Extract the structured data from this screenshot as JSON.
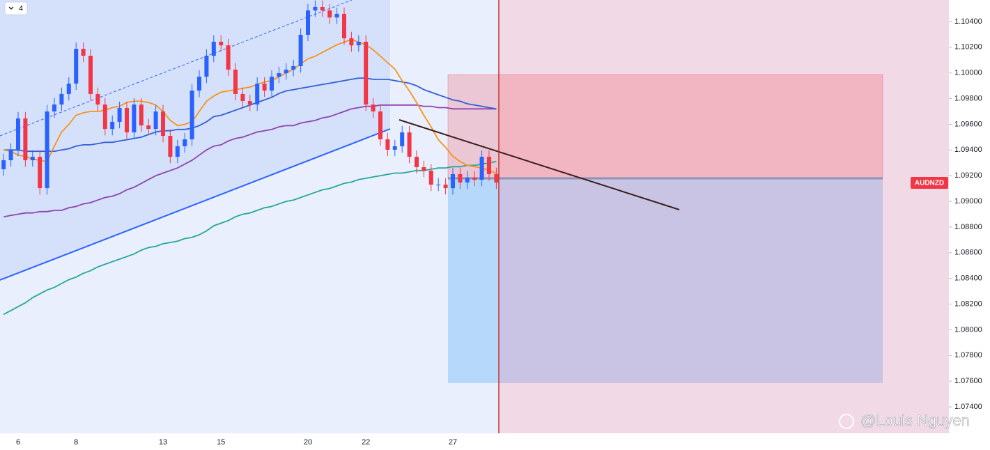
{
  "chart_data": {
    "type": "candlestick",
    "symbol": "AUDNZD",
    "badge": "4",
    "watermark": "@Louis Nguyen",
    "categories": [
      null,
      null,
      "6",
      null,
      null,
      null,
      null,
      null,
      null,
      null,
      "8",
      null,
      null,
      null,
      null,
      null,
      null,
      null,
      null,
      null,
      null,
      null,
      "13",
      null,
      null,
      null,
      null,
      null,
      null,
      null,
      "15",
      null,
      null,
      null,
      null,
      null,
      null,
      null,
      null,
      null,
      null,
      null,
      "20",
      null,
      null,
      null,
      null,
      null,
      null,
      null,
      "22",
      null,
      null,
      null,
      null,
      null,
      null,
      null,
      null,
      null,
      null,
      null,
      "27",
      null,
      null,
      null,
      null,
      null,
      null
    ],
    "open": [
      1.0925,
      1.0932,
      1.09402,
      1.09646,
      1.0932,
      1.09347,
      1.09103,
      1.097,
      1.09754,
      1.09836,
      1.09917,
      1.10188,
      1.10134,
      1.09836,
      1.09754,
      1.09564,
      1.09619,
      1.09727,
      1.09537,
      1.09754,
      1.09591,
      1.09564,
      1.097,
      1.0951,
      1.09347,
      1.09429,
      1.09483,
      1.09863,
      1.09971,
      1.10134,
      1.10243,
      1.10215,
      1.10026,
      1.09836,
      1.09781,
      1.09754,
      1.09917,
      1.09863,
      1.09971,
      1.09998,
      1.10026,
      1.10053,
      1.10297,
      1.10487,
      1.10514,
      1.10487,
      1.10432,
      1.1046,
      1.1027,
      1.10215,
      1.10243,
      1.09754,
      1.097,
      1.09483,
      1.09402,
      1.09429,
      1.09537,
      1.09347,
      1.09266,
      1.09239,
      1.0913,
      1.0913,
      1.09103,
      1.09212,
      1.09147,
      1.09185,
      1.09168,
      1.09347,
      1.09212
    ],
    "high": [
      1.0937,
      1.09452,
      1.09696,
      1.09696,
      1.09397,
      1.09397,
      1.0975,
      1.09804,
      1.09886,
      1.09967,
      1.10238,
      1.10238,
      1.10184,
      1.09886,
      1.09804,
      1.09669,
      1.09777,
      1.09777,
      1.09804,
      1.09804,
      1.09641,
      1.0975,
      1.0975,
      1.0956,
      1.09479,
      1.09533,
      1.09913,
      1.10021,
      1.10184,
      1.10293,
      1.10293,
      1.10265,
      1.10076,
      1.09886,
      1.09831,
      1.09967,
      1.09967,
      1.10021,
      1.10048,
      1.10076,
      1.10103,
      1.10347,
      1.10537,
      1.10564,
      1.10564,
      1.10537,
      1.1051,
      1.1051,
      1.1032,
      1.10293,
      1.10293,
      1.09804,
      1.0975,
      1.09533,
      1.09479,
      1.09587,
      1.09587,
      1.09397,
      1.09316,
      1.09289,
      1.0918,
      1.0918,
      1.09262,
      1.09262,
      1.09235,
      1.09235,
      1.09397,
      1.09397,
      1.09262
    ],
    "low": [
      1.092,
      1.0927,
      1.09352,
      1.0927,
      1.0927,
      1.09053,
      1.09053,
      1.0965,
      1.09704,
      1.09786,
      1.09867,
      1.10084,
      1.09786,
      1.09704,
      1.09514,
      1.09514,
      1.09569,
      1.09487,
      1.09487,
      1.09541,
      1.09514,
      1.09514,
      1.0946,
      1.09297,
      1.09297,
      1.09379,
      1.09433,
      1.09813,
      1.09921,
      1.10084,
      1.10165,
      1.09976,
      1.09786,
      1.09731,
      1.09704,
      1.09704,
      1.09813,
      1.09813,
      1.09921,
      1.09948,
      1.09976,
      1.10003,
      1.10247,
      1.10437,
      1.10437,
      1.10382,
      1.10382,
      1.1022,
      1.10165,
      1.10165,
      1.09704,
      1.0965,
      1.09433,
      1.09352,
      1.09352,
      1.09379,
      1.09297,
      1.09216,
      1.09189,
      1.0908,
      1.0908,
      1.09053,
      1.09053,
      1.09097,
      1.09097,
      1.09118,
      1.09118,
      1.09162,
      1.09097
    ],
    "close": [
      1.0932,
      1.09402,
      1.09646,
      1.0932,
      1.09347,
      1.09103,
      1.097,
      1.09754,
      1.09836,
      1.09917,
      1.10188,
      1.10134,
      1.09836,
      1.09754,
      1.09564,
      1.09619,
      1.09727,
      1.09537,
      1.09754,
      1.09591,
      1.09564,
      1.097,
      1.0951,
      1.09347,
      1.09429,
      1.09483,
      1.09863,
      1.09971,
      1.10134,
      1.10243,
      1.10215,
      1.10026,
      1.09836,
      1.09781,
      1.09754,
      1.09917,
      1.09863,
      1.09971,
      1.09998,
      1.10026,
      1.10053,
      1.10297,
      1.10487,
      1.10514,
      1.10487,
      1.10432,
      1.1046,
      1.1027,
      1.10215,
      1.10243,
      1.09754,
      1.097,
      1.09483,
      1.09402,
      1.09429,
      1.09537,
      1.09347,
      1.09266,
      1.09239,
      1.0913,
      1.0913,
      1.09103,
      1.09212,
      1.09147,
      1.09185,
      1.09168,
      1.09347,
      1.09212,
      1.09147
    ],
    "up_color": "#2962ff",
    "down_color": "#f23645",
    "overlays": [
      {
        "color": "#26a69a",
        "values": [
          1.0812,
          1.0815,
          1.0818,
          1.0821,
          1.0825,
          1.0828,
          1.0831,
          1.0833,
          1.0836,
          1.0839,
          1.0841,
          1.0844,
          1.0846,
          1.0849,
          1.0851,
          1.0853,
          1.0855,
          1.0857,
          1.0859,
          1.0862,
          1.0864,
          1.0865,
          1.0867,
          1.0868,
          1.0869,
          1.0871,
          1.0872,
          1.0874,
          1.0877,
          1.0881,
          1.0883,
          1.0885,
          1.0888,
          1.089,
          1.0891,
          1.0893,
          1.0895,
          1.0896,
          1.0898,
          1.09,
          1.0901,
          1.0903,
          1.0905,
          1.0907,
          1.0909,
          1.091,
          1.0912,
          1.0914,
          1.0915,
          1.0917,
          1.0918,
          1.0919,
          1.092,
          1.0921,
          1.0922,
          1.0922,
          1.0923,
          1.0924,
          1.0924,
          1.0925,
          1.0926,
          1.0926,
          1.0927,
          1.0927,
          1.0928,
          1.0928,
          1.0929,
          1.093,
          1.0931
        ]
      },
      {
        "color": "#8e44ad",
        "values": [
          1.0888,
          1.0889,
          1.089,
          1.0891,
          1.0891,
          1.0892,
          1.0892,
          1.0893,
          1.0893,
          1.0895,
          1.0896,
          1.0898,
          1.0899,
          1.0901,
          1.0903,
          1.0904,
          1.0906,
          1.0909,
          1.0911,
          1.0914,
          1.0917,
          1.092,
          1.0922,
          1.0924,
          1.0926,
          1.0929,
          1.0932,
          1.0936,
          1.094,
          1.0943,
          1.0944,
          1.0947,
          1.0949,
          1.095,
          1.0952,
          1.0954,
          1.0955,
          1.0956,
          1.0958,
          1.0959,
          1.0959,
          1.0961,
          1.0962,
          1.0963,
          1.0965,
          1.0966,
          1.0968,
          1.097,
          1.0972,
          1.0973,
          1.0974,
          1.0974,
          1.0975,
          1.0975,
          1.0975,
          1.0975,
          1.0975,
          1.0975,
          1.0974,
          1.0974,
          1.0973,
          1.0973,
          1.0972,
          1.0972,
          1.0972,
          1.0972,
          1.0972,
          1.0972,
          1.0972
        ]
      },
      {
        "color": "#2f5fd8",
        "values": [
          1.094,
          1.094,
          1.094,
          1.0939,
          1.0939,
          1.0939,
          1.0939,
          1.0939,
          1.094,
          1.0941,
          1.0943,
          1.0944,
          1.0944,
          1.0945,
          1.0946,
          1.0946,
          1.0947,
          1.0948,
          1.0949,
          1.095,
          1.0952,
          1.0954,
          1.0955,
          1.0955,
          1.0956,
          1.0956,
          1.0957,
          1.0959,
          1.0962,
          1.0966,
          1.0967,
          1.0969,
          1.0971,
          1.0973,
          1.0975,
          1.0977,
          1.0979,
          1.0981,
          1.0984,
          1.0986,
          1.0987,
          1.0988,
          1.0989,
          1.099,
          1.0991,
          1.0992,
          1.0993,
          1.0994,
          1.0995,
          1.0996,
          1.0996,
          1.0995,
          1.0995,
          1.0995,
          1.0994,
          1.0993,
          1.0992,
          1.099,
          1.0987,
          1.0985,
          1.0983,
          1.0981,
          1.0979,
          1.0978,
          1.0976,
          1.0975,
          1.0974,
          1.0973,
          1.0972
        ]
      },
      {
        "color": "#f7931a",
        "values": [
          1.094,
          1.0939,
          1.0936,
          1.0935,
          1.0933,
          1.0932,
          1.0931,
          1.0943,
          1.0954,
          1.096,
          1.0967,
          1.0969,
          1.097,
          1.097,
          1.0971,
          1.0973,
          1.0974,
          1.0977,
          1.0978,
          1.0978,
          1.0977,
          1.0975,
          1.097,
          1.0963,
          1.0959,
          1.096,
          1.0962,
          1.097,
          1.0978,
          1.0982,
          1.0985,
          1.0986,
          1.0987,
          1.0988,
          1.0989,
          1.0991,
          1.0993,
          1.0994,
          1.0997,
          1.1,
          1.1003,
          1.1007,
          1.1011,
          1.1013,
          1.1016,
          1.1019,
          1.1022,
          1.1024,
          1.1026,
          1.1024,
          1.1022,
          1.1018,
          1.1013,
          1.1008,
          1.1003,
          1.0994,
          1.0986,
          1.0977,
          1.0967,
          1.0958,
          1.0948,
          1.0942,
          1.0935,
          1.0931,
          1.0928,
          1.0927,
          1.0926,
          1.0924,
          1.0922
        ]
      }
    ],
    "ylim": [
      1.07194,
      1.10568
    ],
    "yticks": [
      {
        "value": 1.074,
        "label": "1.07400"
      },
      {
        "value": 1.076,
        "label": "1.07600"
      },
      {
        "value": 1.078,
        "label": "1.07800"
      },
      {
        "value": 1.08,
        "label": "1.08000"
      },
      {
        "value": 1.082,
        "label": "1.08200"
      },
      {
        "value": 1.084,
        "label": "1.08400"
      },
      {
        "value": 1.086,
        "label": "1.08600"
      },
      {
        "value": 1.088,
        "label": "1.08800"
      },
      {
        "value": 1.09,
        "label": "1.09000"
      },
      {
        "value": 1.092,
        "label": "1.09200"
      },
      {
        "value": 1.094,
        "label": "1.09400"
      },
      {
        "value": 1.096,
        "label": "1.09600"
      },
      {
        "value": 1.098,
        "label": "1.09800"
      },
      {
        "value": 1.1,
        "label": "1.10000"
      },
      {
        "value": 1.102,
        "label": "1.10200"
      },
      {
        "value": 1.104,
        "label": "1.10400"
      }
    ]
  }
}
